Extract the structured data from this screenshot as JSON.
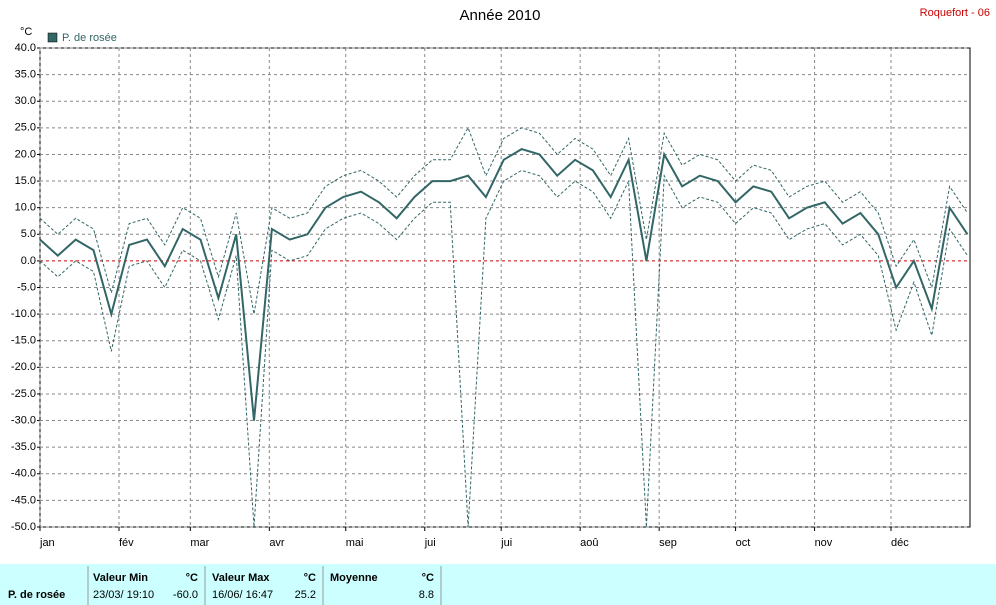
{
  "chart_data": {
    "type": "line",
    "title": "Année 2010",
    "station": "Roquefort - 06",
    "y_unit": "°C",
    "xlim": [
      0,
      365
    ],
    "xticks": [
      {
        "value": 0,
        "label": "jan"
      },
      {
        "value": 31,
        "label": "fév"
      },
      {
        "value": 59,
        "label": "mar"
      },
      {
        "value": 90,
        "label": "avr"
      },
      {
        "value": 120,
        "label": "mai"
      },
      {
        "value": 151,
        "label": "jui"
      },
      {
        "value": 181,
        "label": "jui"
      },
      {
        "value": 212,
        "label": "aoû"
      },
      {
        "value": 243,
        "label": "sep"
      },
      {
        "value": 273,
        "label": "oct"
      },
      {
        "value": 304,
        "label": "nov"
      },
      {
        "value": 334,
        "label": "déc"
      }
    ],
    "ylim": [
      -50,
      40
    ],
    "yticks": [
      {
        "value": 40,
        "label": "40.0"
      },
      {
        "value": 35,
        "label": "35.0"
      },
      {
        "value": 30,
        "label": "30.0"
      },
      {
        "value": 25,
        "label": "25.0"
      },
      {
        "value": 20,
        "label": "20.0"
      },
      {
        "value": 15,
        "label": "15.0"
      },
      {
        "value": 10,
        "label": "10.0"
      },
      {
        "value": 5,
        "label": "5.0"
      },
      {
        "value": 0,
        "label": "0.0"
      },
      {
        "value": -5,
        "label": "-5.0"
      },
      {
        "value": -10,
        "label": "-10.0"
      },
      {
        "value": -15,
        "label": "-15.0"
      },
      {
        "value": -20,
        "label": "-20.0"
      },
      {
        "value": -25,
        "label": "-25.0"
      },
      {
        "value": -30,
        "label": "-30.0"
      },
      {
        "value": -35,
        "label": "-35.0"
      },
      {
        "value": -40,
        "label": "-40.0"
      },
      {
        "value": -45,
        "label": "-45.0"
      },
      {
        "value": -50,
        "label": "-50.0"
      }
    ],
    "grid": true,
    "x": [
      0,
      7,
      14,
      21,
      28,
      35,
      42,
      49,
      56,
      63,
      70,
      77,
      84,
      91,
      98,
      105,
      112,
      119,
      126,
      133,
      140,
      147,
      154,
      161,
      168,
      175,
      182,
      189,
      196,
      203,
      210,
      217,
      224,
      231,
      238,
      245,
      252,
      259,
      266,
      273,
      280,
      287,
      294,
      301,
      308,
      315,
      322,
      329,
      336,
      343,
      350,
      357,
      364
    ],
    "series": [
      {
        "name": "P. de rosée",
        "color": "#336666",
        "style": "solid",
        "values": [
          4,
          1,
          4,
          2,
          -10,
          3,
          4,
          -1,
          6,
          4,
          -7,
          5,
          -30,
          6,
          4,
          5,
          10,
          12,
          13,
          11,
          8,
          12,
          15,
          15,
          16,
          12,
          19,
          21,
          20,
          16,
          19,
          17,
          12,
          19,
          0,
          20,
          14,
          16,
          15,
          11,
          14,
          13,
          8,
          10,
          11,
          7,
          9,
          5,
          -5,
          0,
          -9,
          10,
          5
        ]
      },
      {
        "color": "#336666",
        "style": "dashed",
        "values": [
          0,
          -3,
          0,
          -2,
          -17,
          -1,
          0,
          -5,
          2,
          0,
          -11,
          1,
          -50,
          2,
          0,
          1,
          6,
          8,
          9,
          7,
          4,
          8,
          11,
          11,
          -50,
          8,
          15,
          17,
          16,
          12,
          15,
          13,
          8,
          15,
          -50,
          16,
          10,
          12,
          11,
          7,
          10,
          9,
          4,
          6,
          7,
          3,
          5,
          1,
          -13,
          -4,
          -14,
          6,
          1
        ]
      },
      {
        "color": "#336666",
        "style": "dashed",
        "values": [
          8,
          5,
          8,
          6,
          -6,
          7,
          8,
          3,
          10,
          8,
          -3,
          9,
          -10,
          10,
          8,
          9,
          14,
          16,
          17,
          15,
          12,
          16,
          19,
          19,
          25,
          16,
          23,
          25,
          24,
          20,
          23,
          21,
          16,
          23,
          4,
          24,
          18,
          20,
          19,
          15,
          18,
          17,
          12,
          14,
          15,
          11,
          13,
          9,
          -1,
          4,
          -5,
          14,
          9
        ]
      }
    ],
    "stats": {
      "name": "P. de rosée",
      "min_header": "Valeur Min",
      "min_unit": "°C",
      "min_date": "23/03/ 19:10",
      "min_value": "-60.0",
      "max_header": "Valeur Max",
      "max_unit": "°C",
      "max_date": "16/06/ 16:47",
      "max_value": "25.2",
      "mean_header": "Moyenne",
      "mean_unit": "°C",
      "mean_value": "8.8"
    }
  }
}
